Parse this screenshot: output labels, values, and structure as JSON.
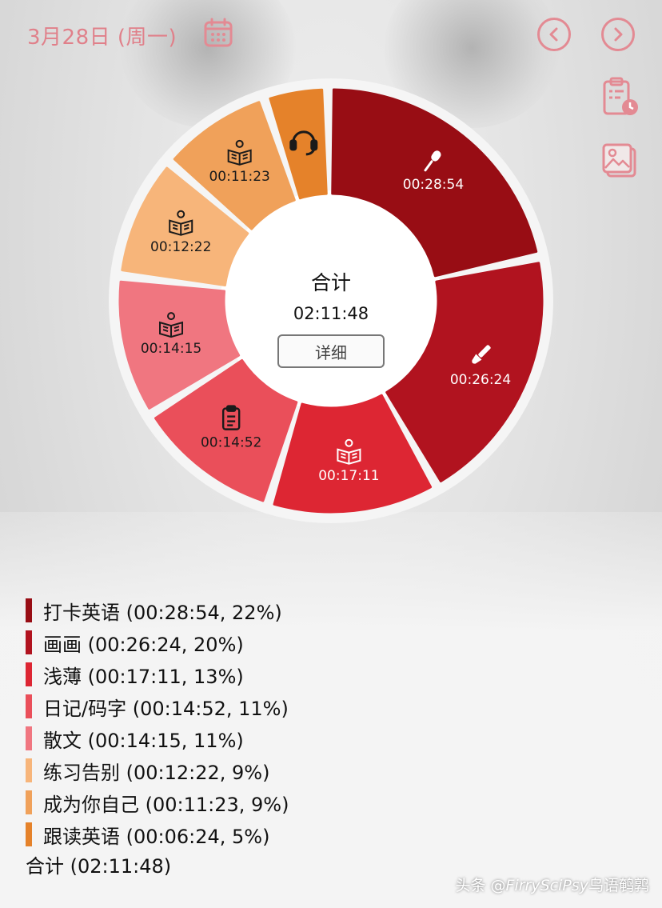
{
  "header": {
    "date": "3月28日 (周一)"
  },
  "chart_data": {
    "type": "donut",
    "center_title": "合计",
    "center_total": "02:11:48",
    "detail_label": "详细",
    "series": [
      {
        "name": "打卡英语",
        "value_seconds": 1734,
        "time": "00:28:54",
        "percent": 22,
        "color": "#980d14",
        "icon": "microphone-icon"
      },
      {
        "name": "画画",
        "value_seconds": 1584,
        "time": "00:26:24",
        "percent": 20,
        "color": "#b1131f",
        "icon": "brush-icon"
      },
      {
        "name": "浅薄",
        "value_seconds": 1031,
        "time": "00:17:11",
        "percent": 13,
        "color": "#dd2633",
        "icon": "book-reader-icon"
      },
      {
        "name": "日记/码字",
        "value_seconds": 892,
        "time": "00:14:52",
        "percent": 11,
        "color": "#ea4f5a",
        "icon": "clipboard-icon"
      },
      {
        "name": "散文",
        "value_seconds": 855,
        "time": "00:14:15",
        "percent": 11,
        "color": "#f07680",
        "icon": "book-reader-icon"
      },
      {
        "name": "练习告别",
        "value_seconds": 742,
        "time": "00:12:22",
        "percent": 9,
        "color": "#f7b57a",
        "icon": "book-reader-icon"
      },
      {
        "name": "成为你自己",
        "value_seconds": 683,
        "time": "00:11:23",
        "percent": 9,
        "color": "#f0a15a",
        "icon": "book-reader-icon"
      },
      {
        "name": "跟读英语",
        "value_seconds": 384,
        "time": "00:06:24",
        "percent": 5,
        "color": "#e5822a",
        "icon": "headphones-icon"
      }
    ]
  },
  "legend": {
    "items": [
      {
        "text": "打卡英语 (00:28:54, 22%)",
        "color": "#980d14"
      },
      {
        "text": "画画 (00:26:24, 20%)",
        "color": "#b1131f"
      },
      {
        "text": "浅薄 (00:17:11, 13%)",
        "color": "#dd2633"
      },
      {
        "text": "日记/码字 (00:14:52, 11%)",
        "color": "#ea4f5a"
      },
      {
        "text": "散文 (00:14:15, 11%)",
        "color": "#f07680"
      },
      {
        "text": "练习告别 (00:12:22, 9%)",
        "color": "#f7b57a"
      },
      {
        "text": "成为你自己 (00:11:23, 9%)",
        "color": "#f0a15a"
      },
      {
        "text": "跟读英语 (00:06:24, 5%)",
        "color": "#e5822a"
      }
    ],
    "total": "合计 (02:11:48)"
  },
  "watermark": {
    "prefix": "头条 @",
    "handle": "FirrySciPsy",
    "suffix": "乌语鹌鹑"
  },
  "colors": {
    "accent": "#e0808a"
  }
}
